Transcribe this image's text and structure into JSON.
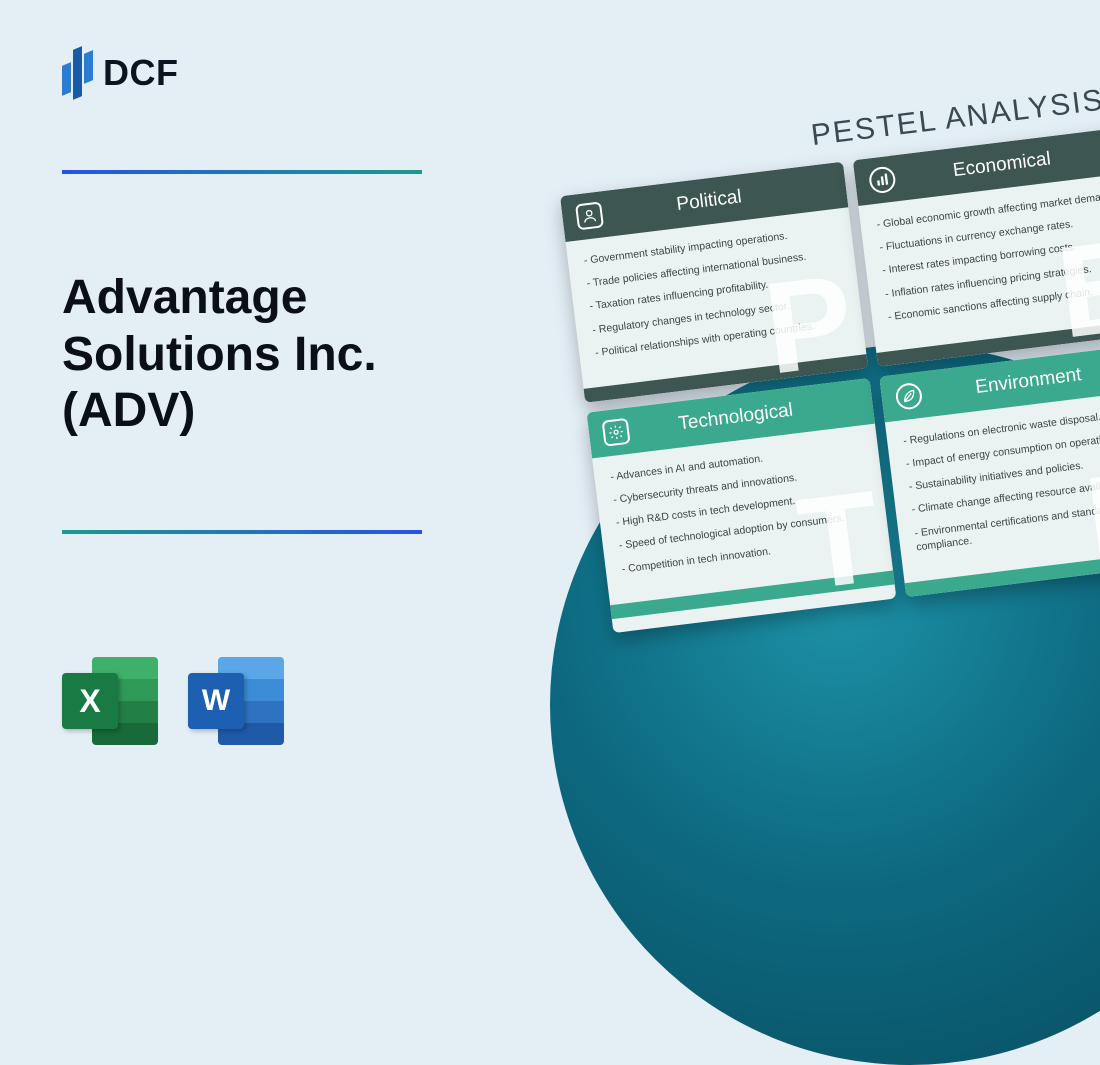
{
  "logo_text": "DCF",
  "title": "Advantage Solutions Inc. (ADV)",
  "excel_letter": "X",
  "word_letter": "W",
  "board": {
    "title": "PESTEL ANALYSIS",
    "cards": [
      {
        "letter": "P",
        "head_class": "head-dark",
        "foot_class": "foot-dark",
        "title": "Political",
        "icon": "person",
        "items": [
          "Government stability impacting operations.",
          "Trade policies affecting international business.",
          "Taxation rates influencing profitability.",
          "Regulatory changes in technology sector.",
          "Political relationships with operating countries."
        ]
      },
      {
        "letter": "E",
        "head_class": "head-dark",
        "foot_class": "foot-dark",
        "title": "Economical",
        "icon": "bars",
        "items": [
          "Global economic growth affecting market demand.",
          "Fluctuations in currency exchange rates.",
          "Interest rates impacting borrowing costs.",
          "Inflation rates influencing pricing strategies.",
          "Economic sanctions affecting supply chain."
        ]
      },
      {
        "letter": "T",
        "head_class": "head-teal",
        "foot_class": "foot-teal",
        "title": "Technological",
        "icon": "gear",
        "items": [
          "Advances in AI and automation.",
          "Cybersecurity threats and innovations.",
          "High R&D costs in tech development.",
          "Speed of technological adoption by consumers.",
          "Competition in tech innovation."
        ]
      },
      {
        "letter": "E",
        "head_class": "head-teal",
        "foot_class": "foot-teal",
        "title": "Environment",
        "icon": "leaf",
        "items": [
          "Regulations on electronic waste disposal.",
          "Impact of energy consumption on operations.",
          "Sustainability initiatives and policies.",
          "Climate change affecting resource availability.",
          "Environmental certifications and standards compliance."
        ]
      }
    ]
  }
}
